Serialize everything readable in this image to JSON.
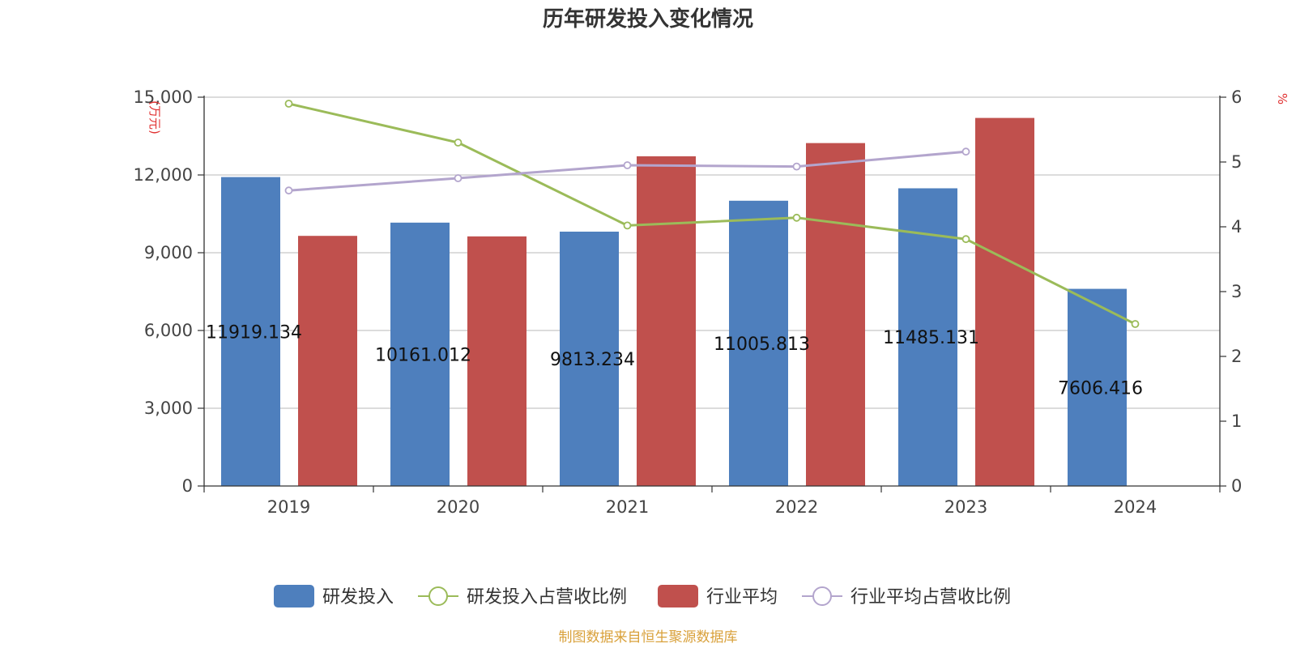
{
  "chart_data": {
    "type": "bar",
    "title": "历年研发投入变化情况",
    "categories": [
      "2019",
      "2020",
      "2021",
      "2022",
      "2023",
      "2024"
    ],
    "left_axis": {
      "unit": "(万元)",
      "min": 0,
      "max": 15000,
      "ticks": [
        "0",
        "3,000",
        "6,000",
        "9,000",
        "12,000",
        "15,000"
      ]
    },
    "right_axis": {
      "unit": "%",
      "min": 0,
      "max": 6,
      "ticks": [
        "0",
        "1",
        "2",
        "3",
        "4",
        "5",
        "6"
      ]
    },
    "series": [
      {
        "name": "研发投入",
        "kind": "bar",
        "axis": "left",
        "color": "#4e7fbd",
        "values": [
          11919.134,
          10161.012,
          9813.234,
          11005.813,
          11485.131,
          7606.416
        ],
        "labels": [
          "11919.134",
          "10161.012",
          "9813.234",
          "11005.813",
          "11485.131",
          "7606.416"
        ]
      },
      {
        "name": "研发投入占营收比例",
        "kind": "line",
        "axis": "right",
        "color": "#9bbb59",
        "values": [
          5.9,
          5.3,
          4.02,
          4.14,
          3.81,
          2.5
        ]
      },
      {
        "name": "行业平均",
        "kind": "bar",
        "axis": "left",
        "color": "#c0504d",
        "values": [
          9650,
          9630,
          12720,
          13230,
          14200,
          null
        ]
      },
      {
        "name": "行业平均占营收比例",
        "kind": "line",
        "axis": "right",
        "color": "#b3a5cd",
        "values": [
          4.56,
          4.75,
          4.95,
          4.93,
          5.16,
          null
        ]
      }
    ],
    "grid": true,
    "legend_position": "bottom"
  },
  "footer": {
    "source": "制图数据来自恒生聚源数据库"
  }
}
